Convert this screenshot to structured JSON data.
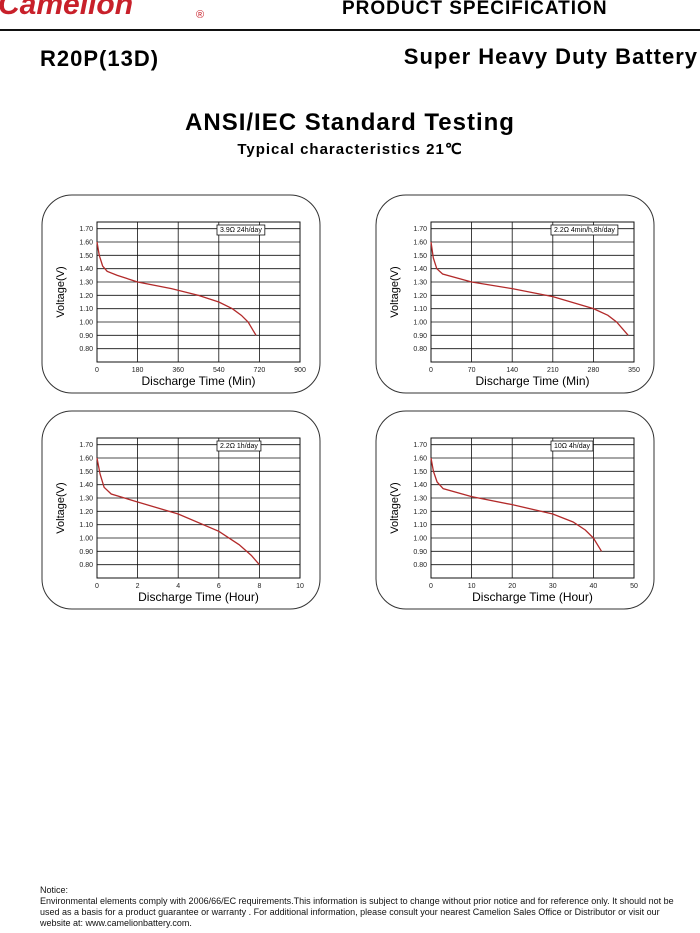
{
  "header": {
    "brand": "Camelion",
    "registered": "®",
    "doc_type": "PRODUCT SPECIFICATION",
    "model": "R20P(13D)",
    "product": "Super Heavy Duty Battery"
  },
  "title": "ANSI/IEC Standard Testing",
  "subtitle": "Typical characteristics 21℃",
  "chart_data": [
    {
      "type": "line",
      "annotation": "3.9Ω 24h/day",
      "x_label": "Discharge Time (Min)",
      "y_label": "Voltage(V)",
      "color": "#b22a2a",
      "x": [
        0,
        10,
        25,
        45,
        90,
        180,
        330,
        450,
        540,
        600,
        640,
        670,
        705
      ],
      "values": [
        1.6,
        1.5,
        1.42,
        1.38,
        1.35,
        1.3,
        1.25,
        1.2,
        1.15,
        1.1,
        1.05,
        1.0,
        0.9
      ],
      "xlim": [
        0,
        900
      ],
      "xticks": [
        0,
        180,
        360,
        540,
        720,
        900
      ],
      "ylim": [
        0.7,
        1.75
      ],
      "yticks": [
        {
          "value": 0.8,
          "label": "0.80"
        },
        {
          "value": 0.9,
          "label": "0.90"
        },
        {
          "value": 1.0,
          "label": "1.00"
        },
        {
          "value": 1.1,
          "label": "1.10"
        },
        {
          "value": 1.2,
          "label": "1.20"
        },
        {
          "value": 1.3,
          "label": "1.30"
        },
        {
          "value": 1.4,
          "label": "1.40"
        },
        {
          "value": 1.5,
          "label": "1.50"
        },
        {
          "value": 1.6,
          "label": "1.60"
        },
        {
          "value": 1.7,
          "label": "1.70"
        }
      ],
      "grid": true
    },
    {
      "type": "line",
      "annotation": "2.2Ω 4min/h,8h/day",
      "x_label": "Discharge Time (Min)",
      "y_label": "Voltage(V)",
      "color": "#b22a2a",
      "x": [
        0,
        4,
        10,
        20,
        70,
        140,
        210,
        280,
        305,
        320,
        340
      ],
      "values": [
        1.6,
        1.48,
        1.4,
        1.36,
        1.3,
        1.25,
        1.19,
        1.1,
        1.05,
        1.0,
        0.9
      ],
      "xlim": [
        0,
        350
      ],
      "xticks": [
        0,
        70,
        140,
        210,
        280,
        350
      ],
      "ylim": [
        0.7,
        1.75
      ],
      "yticks": [
        {
          "value": 0.8,
          "label": "0.80"
        },
        {
          "value": 0.9,
          "label": "0.90"
        },
        {
          "value": 1.0,
          "label": "1.00"
        },
        {
          "value": 1.1,
          "label": "1.10"
        },
        {
          "value": 1.2,
          "label": "1.20"
        },
        {
          "value": 1.3,
          "label": "1.30"
        },
        {
          "value": 1.4,
          "label": "1.40"
        },
        {
          "value": 1.5,
          "label": "1.50"
        },
        {
          "value": 1.6,
          "label": "1.60"
        },
        {
          "value": 1.7,
          "label": "1.70"
        }
      ],
      "grid": true
    },
    {
      "type": "line",
      "annotation": "2.2Ω 1h/day",
      "x_label": "Discharge Time (Hour)",
      "y_label": "Voltage(V)",
      "color": "#b22a2a",
      "x": [
        0,
        0.15,
        0.35,
        0.7,
        2,
        4,
        6,
        7,
        7.6,
        8
      ],
      "values": [
        1.6,
        1.48,
        1.38,
        1.33,
        1.27,
        1.18,
        1.05,
        0.95,
        0.87,
        0.8
      ],
      "xlim": [
        0,
        10
      ],
      "xticks": [
        0,
        2,
        4,
        6,
        8,
        10
      ],
      "ylim": [
        0.7,
        1.75
      ],
      "yticks": [
        {
          "value": 0.8,
          "label": "0.80"
        },
        {
          "value": 0.9,
          "label": "0.90"
        },
        {
          "value": 1.0,
          "label": "1.00"
        },
        {
          "value": 1.1,
          "label": "1.10"
        },
        {
          "value": 1.2,
          "label": "1.20"
        },
        {
          "value": 1.3,
          "label": "1.30"
        },
        {
          "value": 1.4,
          "label": "1.40"
        },
        {
          "value": 1.5,
          "label": "1.50"
        },
        {
          "value": 1.6,
          "label": "1.60"
        },
        {
          "value": 1.7,
          "label": "1.70"
        }
      ],
      "grid": true
    },
    {
      "type": "line",
      "annotation": "10Ω 4h/day",
      "x_label": "Discharge Time (Hour)",
      "y_label": "Voltage(V)",
      "color": "#b22a2a",
      "x": [
        0,
        0.6,
        1.5,
        3,
        10,
        20,
        30,
        35,
        38,
        40,
        42
      ],
      "values": [
        1.6,
        1.5,
        1.42,
        1.37,
        1.31,
        1.25,
        1.18,
        1.12,
        1.06,
        1.0,
        0.9
      ],
      "xlim": [
        0,
        50
      ],
      "xticks": [
        0,
        10,
        20,
        30,
        40,
        50
      ],
      "ylim": [
        0.7,
        1.75
      ],
      "yticks": [
        {
          "value": 0.8,
          "label": "0.80"
        },
        {
          "value": 0.9,
          "label": "0.90"
        },
        {
          "value": 1.0,
          "label": "1.00"
        },
        {
          "value": 1.1,
          "label": "1.10"
        },
        {
          "value": 1.2,
          "label": "1.20"
        },
        {
          "value": 1.3,
          "label": "1.30"
        },
        {
          "value": 1.4,
          "label": "1.40"
        },
        {
          "value": 1.5,
          "label": "1.50"
        },
        {
          "value": 1.6,
          "label": "1.60"
        },
        {
          "value": 1.7,
          "label": "1.70"
        }
      ],
      "grid": true
    }
  ],
  "notice": {
    "label": "Notice:",
    "text": "Environmental elements comply with  2006/66/EC requirements.This information is subject to change without prior notice and for reference only. It should not be used as a basis for a product guarantee or warranty . For additional information, please consult your nearest Camelion Sales Office or Distributor or visit our website at: www.camelionbattery.com."
  }
}
